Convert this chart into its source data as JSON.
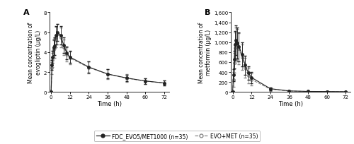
{
  "panel_A": {
    "label": "A",
    "ylabel": "Mean concentration of\nevogliptin (µg/L)",
    "xlabel": "Time (h)",
    "ylim": [
      0,
      8
    ],
    "yticks": [
      0,
      2,
      4,
      6,
      8
    ],
    "xticks": [
      0,
      12,
      24,
      36,
      48,
      60,
      72
    ],
    "fdc_x": [
      0,
      0.5,
      1,
      1.5,
      2,
      3,
      4,
      6,
      8,
      10,
      12,
      24,
      36,
      48,
      60,
      72
    ],
    "fdc_y": [
      0,
      2.7,
      3.5,
      4.5,
      4.6,
      5.7,
      6.0,
      5.7,
      4.7,
      3.9,
      3.5,
      2.5,
      1.8,
      1.4,
      1.1,
      0.9
    ],
    "fdc_yerr": [
      0,
      0.5,
      0.6,
      0.8,
      0.9,
      0.9,
      0.85,
      0.9,
      0.75,
      0.65,
      0.6,
      0.55,
      0.45,
      0.35,
      0.28,
      0.22
    ],
    "evo_x": [
      0,
      0.5,
      1,
      1.5,
      2,
      3,
      4,
      6,
      8,
      10,
      12,
      24,
      36,
      48,
      60,
      72
    ],
    "evo_y": [
      0,
      2.4,
      3.2,
      4.3,
      4.4,
      5.5,
      5.8,
      5.5,
      4.5,
      3.8,
      3.4,
      2.45,
      1.78,
      1.38,
      1.08,
      0.88
    ],
    "evo_yerr": [
      0,
      0.6,
      0.7,
      0.9,
      1.0,
      1.05,
      1.0,
      1.0,
      0.8,
      0.7,
      0.65,
      0.6,
      0.5,
      0.4,
      0.3,
      0.25
    ]
  },
  "panel_B": {
    "label": "B",
    "ylabel": "Mean concentration of\nmetformin (µg/L)",
    "xlabel": "Time (h)",
    "ylim": [
      0,
      1600
    ],
    "yticks": [
      0,
      200,
      400,
      600,
      800,
      1000,
      1200,
      1400,
      1600
    ],
    "xticks": [
      0,
      12,
      24,
      36,
      48,
      60,
      72
    ],
    "fdc_x": [
      0,
      0.5,
      1,
      1.5,
      2,
      3,
      4,
      6,
      8,
      10,
      12,
      24,
      36,
      48,
      60,
      72
    ],
    "fdc_y": [
      0,
      340,
      650,
      950,
      1040,
      980,
      910,
      750,
      540,
      380,
      290,
      65,
      20,
      10,
      8,
      5
    ],
    "fdc_yerr": [
      0,
      120,
      180,
      280,
      300,
      310,
      290,
      240,
      190,
      140,
      110,
      30,
      12,
      8,
      5,
      4
    ],
    "evo_x": [
      0,
      0.5,
      1,
      1.5,
      2,
      3,
      4,
      6,
      8,
      10,
      12,
      24,
      36,
      48,
      60,
      72
    ],
    "evo_y": [
      0,
      250,
      580,
      880,
      970,
      940,
      870,
      700,
      480,
      330,
      250,
      55,
      18,
      8,
      6,
      4
    ],
    "evo_yerr": [
      0,
      150,
      200,
      310,
      330,
      330,
      310,
      260,
      200,
      150,
      120,
      35,
      14,
      9,
      6,
      5
    ]
  },
  "legend": {
    "fdc_label": "FDC_EVO5/MET1000 (n=35)",
    "evo_label": "EVO+MET (n=35)"
  },
  "fdc_color": "#222222",
  "evo_color": "#888888",
  "background": "#ffffff"
}
